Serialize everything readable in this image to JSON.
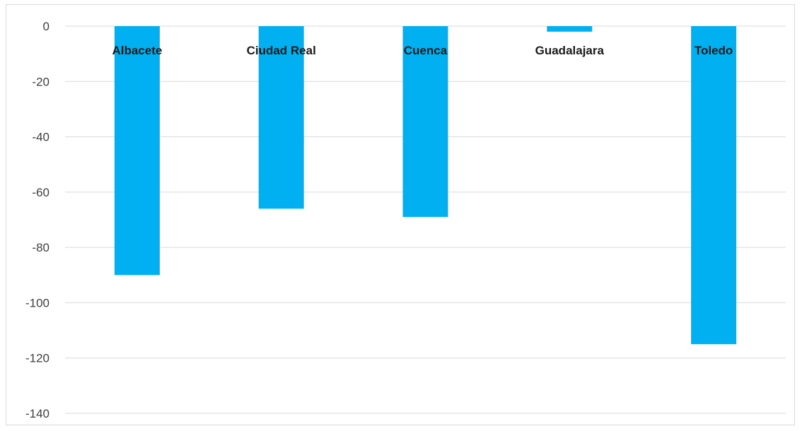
{
  "chart_data": {
    "type": "bar",
    "categories": [
      "Albacete",
      "Ciudad Real",
      "Cuenca",
      "Guadalajara",
      "Toledo"
    ],
    "values": [
      -90,
      -66,
      -69,
      -2,
      -115
    ],
    "ylim": [
      -140,
      0
    ],
    "yticks": [
      0,
      -20,
      -40,
      -60,
      -80,
      -100,
      -120,
      -140
    ],
    "grid": true,
    "legend": "none",
    "bar_color": "#00B0F0",
    "grid_color": "#d9d9d9"
  }
}
